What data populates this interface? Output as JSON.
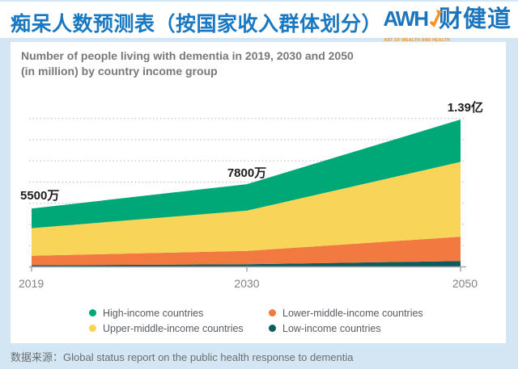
{
  "header": {
    "title": "痴呆人数预测表（按国家收入群体划分）",
    "logo": {
      "brand": "AWH",
      "brand_cn": "财健道",
      "tagline": "ART OF WEALTH AND HEALTH",
      "brand_color": "#1c75bc",
      "accent_color": "#f7941d"
    }
  },
  "panel": {
    "title_line1": "Number of people living with dementia in 2019, 2030 and 2050",
    "title_line2": "(in million) by country income group"
  },
  "chart_data": {
    "type": "area",
    "stacked": true,
    "title": "Number of people living with dementia in 2019, 2030 and 2050 (in million) by country income group",
    "unit": "million",
    "x": [
      2019,
      2030,
      2050
    ],
    "x_labels": [
      "2019",
      "2030",
      "2050"
    ],
    "series": [
      {
        "name": "Low-income countries",
        "color": "#0d5c5e",
        "values": [
          1.5,
          2.5,
          5.5
        ]
      },
      {
        "name": "Lower-middle-income countries",
        "color": "#f2793f",
        "values": [
          9,
          12.5,
          23
        ]
      },
      {
        "name": "Upper-middle-income countries",
        "color": "#f8d458",
        "values": [
          26,
          38,
          70.5
        ]
      },
      {
        "name": "High-income countries",
        "color": "#00a878",
        "values": [
          18.5,
          25,
          40
        ]
      }
    ],
    "totals": [
      55,
      78,
      139
    ],
    "total_labels": [
      "5500万",
      "7800万",
      "1.39亿"
    ],
    "ylim": [
      0,
      150
    ],
    "grid": {
      "interval": 20,
      "max": 140,
      "style": "dotted",
      "shown": true
    },
    "y_axis_labels_shown": false,
    "legend_position": "bottom"
  },
  "legend": {
    "items": [
      {
        "label": "High-income countries",
        "color": "#00a878"
      },
      {
        "label": "Upper-middle-income countries",
        "color": "#f8d458"
      },
      {
        "label": "Lower-middle-income countries",
        "color": "#f2793f"
      },
      {
        "label": "Low-income countries",
        "color": "#0d5c5e"
      }
    ]
  },
  "source": {
    "prefix": "数据来源：",
    "text": "Global status report on the public health response to dementia"
  },
  "colors": {
    "page_bg": "#d4e6f3",
    "banner_bg": "#ffffff",
    "panel_bg": "#ffffff",
    "title_blue": "#1878c2",
    "chart_title_gray": "#77787b",
    "axis_gray": "#a7a9ac",
    "grid_gray": "#c9c9c9",
    "data_label_dark": "#1d1d1f",
    "tick_label_gray": "#808184",
    "legend_text": "#585d63",
    "source_text": "#6a6e71"
  }
}
